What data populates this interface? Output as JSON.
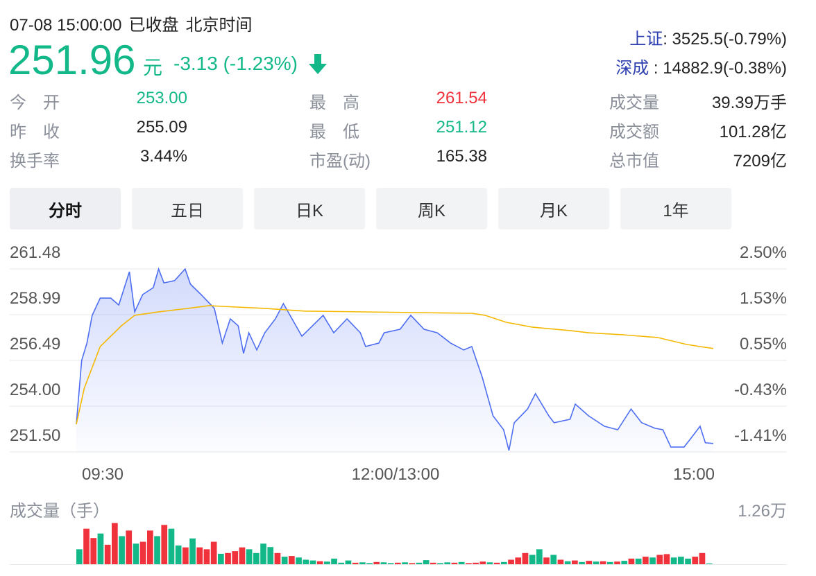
{
  "header": {
    "datetime": "07-08 15:00:00",
    "status": "已收盘",
    "timezone": "北京时间",
    "price": "251.96",
    "unit": "元",
    "change": "-3.13 (-1.23%)",
    "direction": "down"
  },
  "indices": [
    {
      "name": "上证",
      "sep": ":",
      "value": " 3525.5(-0.79%)"
    },
    {
      "name": "深成",
      "sep": " :",
      "value": " 14882.9(-0.38%)"
    }
  ],
  "stats": [
    {
      "label": "今　开",
      "value": "253.00",
      "color": "#13b889"
    },
    {
      "label": "昨　收",
      "value": "255.09",
      "color": "#222222"
    },
    {
      "label": "换手率",
      "value": "3.44%",
      "color": "#222222"
    },
    {
      "label": "最　高",
      "value": "261.54",
      "color": "#f0323c"
    },
    {
      "label": "最　低",
      "value": "251.12",
      "color": "#13b889"
    },
    {
      "label": "市盈(动)",
      "value": "165.38",
      "color": "#222222"
    },
    {
      "label": "成交量",
      "value": "39.39万手",
      "color": "#222222"
    },
    {
      "label": "成交额",
      "value": "101.28亿",
      "color": "#222222"
    },
    {
      "label": "总市值",
      "value": "7209亿",
      "color": "#222222"
    }
  ],
  "tabs": [
    {
      "label": "分时",
      "active": true
    },
    {
      "label": "五日"
    },
    {
      "label": "日K"
    },
    {
      "label": "周K"
    },
    {
      "label": "月K"
    },
    {
      "label": "1年"
    }
  ],
  "colors": {
    "up": "#f0323c",
    "down": "#13b889",
    "price_line": "#4e6ef2",
    "avg_line": "#f5b800"
  },
  "chart_data": {
    "type": "line",
    "y_ticks": [
      "261.48",
      "258.99",
      "256.49",
      "254.00",
      "251.50"
    ],
    "y_pct_ticks": [
      "2.50%",
      "1.53%",
      "0.55%",
      "-0.43%",
      "-1.41%"
    ],
    "ylim": [
      251.5,
      261.48
    ],
    "x_ticks": [
      "09:30",
      "12:00/13:00",
      "15:00"
    ],
    "grid": true,
    "series": [
      {
        "key": "price",
        "points": [
          [
            "09:30",
            253.01
          ],
          [
            "09:32",
            256.49
          ],
          [
            "09:34",
            257.44
          ],
          [
            "09:36",
            258.95
          ],
          [
            "09:39",
            259.89
          ],
          [
            "09:43",
            259.89
          ],
          [
            "09:46",
            259.51
          ],
          [
            "09:50",
            261.33
          ],
          [
            "09:52",
            259.14
          ],
          [
            "09:55",
            260.08
          ],
          [
            "09:59",
            260.46
          ],
          [
            "10:01",
            261.48
          ],
          [
            "10:03",
            260.72
          ],
          [
            "10:07",
            260.84
          ],
          [
            "10:11",
            261.48
          ],
          [
            "10:13",
            260.65
          ],
          [
            "10:17",
            260.08
          ],
          [
            "10:22",
            259.33
          ],
          [
            "10:25",
            257.44
          ],
          [
            "10:28",
            258.76
          ],
          [
            "10:31",
            258.38
          ],
          [
            "10:33",
            256.87
          ],
          [
            "10:35",
            258.0
          ],
          [
            "10:38",
            257.06
          ],
          [
            "10:41",
            258.0
          ],
          [
            "10:45",
            258.76
          ],
          [
            "10:48",
            259.59
          ],
          [
            "10:52",
            258.57
          ],
          [
            "10:55",
            257.81
          ],
          [
            "11:03",
            258.95
          ],
          [
            "11:07",
            258.0
          ],
          [
            "11:12",
            258.76
          ],
          [
            "11:17",
            258.0
          ],
          [
            "11:19",
            257.25
          ],
          [
            "11:24",
            257.44
          ],
          [
            "11:26",
            258.0
          ],
          [
            "13:02",
            258.19
          ],
          [
            "13:06",
            258.95
          ],
          [
            "13:11",
            258.19
          ],
          [
            "13:16",
            258.0
          ],
          [
            "13:21",
            257.44
          ],
          [
            "13:26",
            257.06
          ],
          [
            "13:29",
            257.25
          ],
          [
            "13:33",
            255.55
          ],
          [
            "13:37",
            253.47
          ],
          [
            "13:41",
            252.71
          ],
          [
            "13:43",
            251.58
          ],
          [
            "13:45",
            253.09
          ],
          [
            "13:50",
            253.84
          ],
          [
            "13:53",
            254.68
          ],
          [
            "13:58",
            253.47
          ],
          [
            "14:00",
            253.09
          ],
          [
            "14:06",
            253.28
          ],
          [
            "14:08",
            254.11
          ],
          [
            "14:13",
            253.47
          ],
          [
            "14:19",
            252.9
          ],
          [
            "14:24",
            252.71
          ],
          [
            "14:29",
            253.84
          ],
          [
            "14:33",
            253.09
          ],
          [
            "14:38",
            252.79
          ],
          [
            "14:41",
            252.71
          ],
          [
            "14:44",
            251.77
          ],
          [
            "14:49",
            251.77
          ],
          [
            "14:51",
            252.14
          ],
          [
            "14:55",
            252.9
          ],
          [
            "14:57",
            252.0
          ],
          [
            "15:00",
            251.96
          ]
        ]
      },
      {
        "key": "average",
        "points": [
          [
            "09:30",
            253.01
          ],
          [
            "09:33",
            254.98
          ],
          [
            "09:39",
            257.25
          ],
          [
            "09:47",
            258.38
          ],
          [
            "09:52",
            258.95
          ],
          [
            "10:01",
            259.14
          ],
          [
            "10:12",
            259.33
          ],
          [
            "10:20",
            259.48
          ],
          [
            "10:25",
            259.44
          ],
          [
            "10:41",
            259.33
          ],
          [
            "10:56",
            259.18
          ],
          [
            "13:08",
            259.1
          ],
          [
            "13:29",
            259.06
          ],
          [
            "13:34",
            258.95
          ],
          [
            "13:42",
            258.57
          ],
          [
            "13:52",
            258.3
          ],
          [
            "14:06",
            258.12
          ],
          [
            "14:13",
            258.0
          ],
          [
            "14:26",
            257.89
          ],
          [
            "14:39",
            257.74
          ],
          [
            "14:50",
            257.36
          ],
          [
            "15:00",
            257.14
          ]
        ]
      }
    ]
  },
  "volume_chart": {
    "title": "成交量（手）",
    "max_label": "1.26万",
    "ymax": 12600,
    "bars": [
      [
        4000,
        "d"
      ],
      [
        9500,
        "u"
      ],
      [
        7000,
        "u"
      ],
      [
        8200,
        "d"
      ],
      [
        5200,
        "u"
      ],
      [
        11000,
        "u"
      ],
      [
        7500,
        "d"
      ],
      [
        9000,
        "u"
      ],
      [
        5500,
        "d"
      ],
      [
        6000,
        "u"
      ],
      [
        9000,
        "u"
      ],
      [
        7500,
        "d"
      ],
      [
        10500,
        "u"
      ],
      [
        9500,
        "d"
      ],
      [
        5000,
        "d"
      ],
      [
        4500,
        "u"
      ],
      [
        6900,
        "d"
      ],
      [
        4500,
        "u"
      ],
      [
        4000,
        "u"
      ],
      [
        6000,
        "u"
      ],
      [
        2800,
        "d"
      ],
      [
        3000,
        "u"
      ],
      [
        3500,
        "u"
      ],
      [
        4500,
        "u"
      ],
      [
        4000,
        "d"
      ],
      [
        3000,
        "d"
      ],
      [
        5500,
        "d"
      ],
      [
        4600,
        "d"
      ],
      [
        3000,
        "u"
      ],
      [
        2000,
        "d"
      ],
      [
        2200,
        "u"
      ],
      [
        1800,
        "d"
      ],
      [
        1200,
        "d"
      ],
      [
        1000,
        "d"
      ],
      [
        800,
        "u"
      ],
      [
        700,
        "d"
      ],
      [
        1500,
        "d"
      ],
      [
        400,
        "d"
      ],
      [
        1000,
        "d"
      ],
      [
        400,
        "u"
      ],
      [
        500,
        "d"
      ],
      [
        300,
        "d"
      ],
      [
        600,
        "u"
      ],
      [
        500,
        "d"
      ],
      [
        300,
        "d"
      ],
      [
        400,
        "u"
      ],
      [
        500,
        "d"
      ],
      [
        300,
        "u"
      ],
      [
        400,
        "d"
      ],
      [
        1100,
        "d"
      ],
      [
        400,
        "u"
      ],
      [
        300,
        "d"
      ],
      [
        500,
        "d"
      ],
      [
        400,
        "u"
      ],
      [
        600,
        "d"
      ],
      [
        300,
        "u"
      ],
      [
        400,
        "u"
      ],
      [
        700,
        "u"
      ],
      [
        500,
        "d"
      ],
      [
        400,
        "u"
      ],
      [
        600,
        "d"
      ],
      [
        1200,
        "u"
      ],
      [
        1800,
        "u"
      ],
      [
        3000,
        "u"
      ],
      [
        2500,
        "d"
      ],
      [
        4000,
        "d"
      ],
      [
        1800,
        "u"
      ],
      [
        2500,
        "d"
      ],
      [
        1200,
        "u"
      ],
      [
        800,
        "d"
      ],
      [
        1000,
        "u"
      ],
      [
        600,
        "d"
      ],
      [
        900,
        "u"
      ],
      [
        700,
        "d"
      ],
      [
        800,
        "u"
      ],
      [
        600,
        "d"
      ],
      [
        700,
        "u"
      ],
      [
        900,
        "d"
      ],
      [
        1500,
        "u"
      ],
      [
        1500,
        "d"
      ],
      [
        2000,
        "u"
      ],
      [
        1800,
        "d"
      ],
      [
        2500,
        "u"
      ],
      [
        2700,
        "u"
      ],
      [
        1800,
        "d"
      ],
      [
        2000,
        "d"
      ],
      [
        1500,
        "d"
      ],
      [
        2000,
        "u"
      ],
      [
        3000,
        "u"
      ],
      [
        200,
        "d"
      ]
    ]
  }
}
